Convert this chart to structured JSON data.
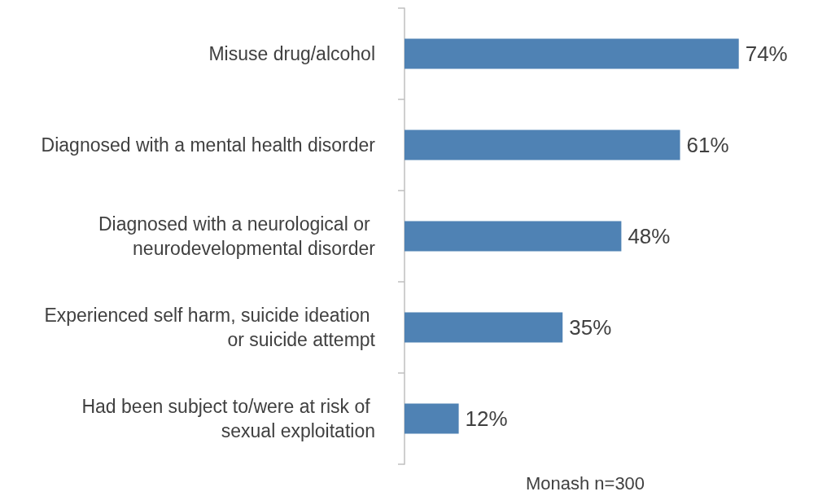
{
  "chart_data": {
    "type": "bar",
    "orientation": "horizontal",
    "categories": [
      "Misuse drug/alcohol",
      "Diagnosed with a mental health disorder",
      "Diagnosed with a neurological or neurodevelopmental disorder",
      "Experienced self harm, suicide ideation or suicide attempt",
      "Had been subject to/were at risk of sexual exploitation"
    ],
    "values": [
      74,
      61,
      48,
      35,
      12
    ],
    "value_labels": [
      "74%",
      "61%",
      "48%",
      "35%",
      "12%"
    ],
    "color": "#4f82b4",
    "xlabel": "Monash n=300",
    "grid": false
  }
}
